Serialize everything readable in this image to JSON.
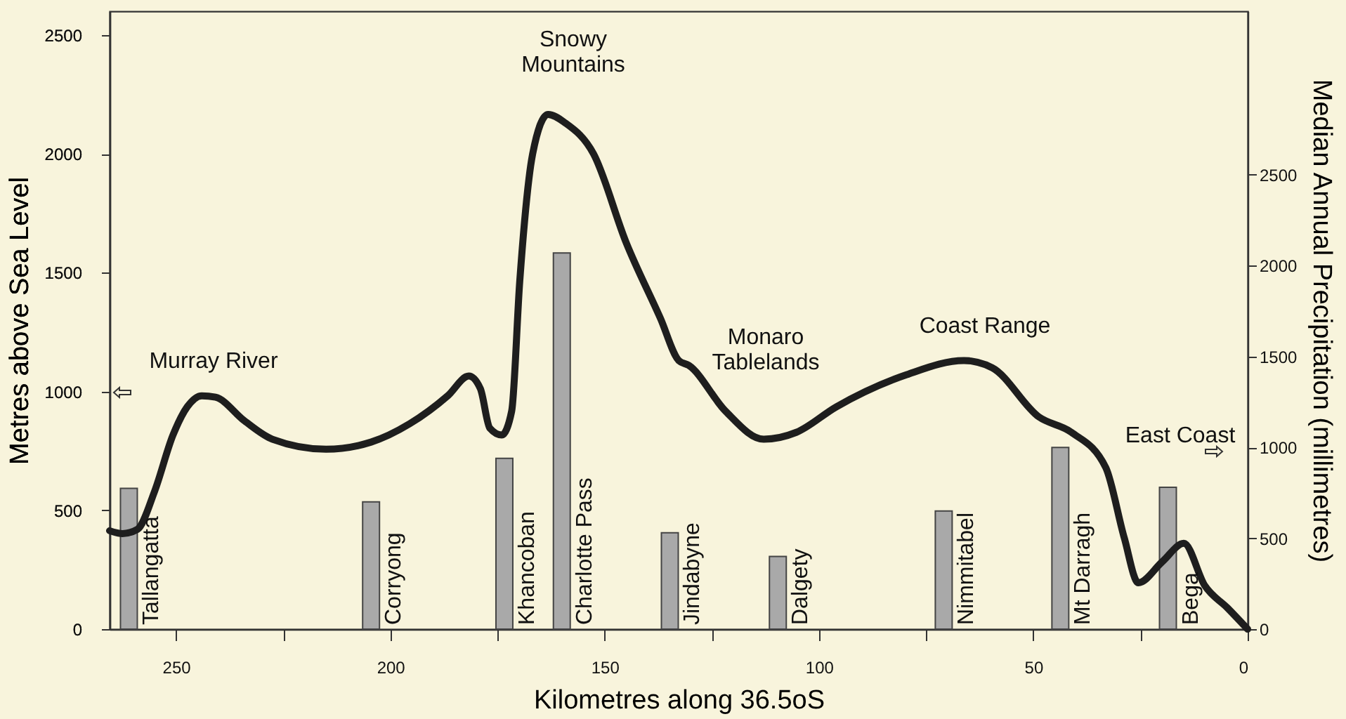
{
  "chart_data": {
    "type": "line",
    "xlabel": "Kilometres along 36.5oS",
    "ylabel": "Metres above Sea Level",
    "y2label": "Median Annual Precipitation (millimetres)",
    "xlim": [
      265.5,
      0
    ],
    "xticks": [
      250,
      {
        "value": 225,
        "label": null
      },
      200,
      {
        "value": 175,
        "label": null
      },
      150,
      {
        "value": 125,
        "label": null
      },
      100,
      {
        "value": 75,
        "label": null
      },
      50,
      {
        "value": 25,
        "label": null
      },
      0
    ],
    "ylim": [
      0,
      2600
    ],
    "yticks": [
      0,
      500,
      1000,
      1500,
      2000,
      2500
    ],
    "y2lim": [
      0,
      3400
    ],
    "y2ticks": [
      0,
      500,
      1000,
      1500,
      2000,
      2500
    ],
    "series": [
      {
        "type": "bar",
        "axis": "y2",
        "color": "#a9a9a9",
        "x": [
          261,
          204.5,
          173.4,
          160,
          134.8,
          109.6,
          70.9,
          43.7,
          18.6
        ],
        "values": [
          775,
          700,
          940,
          2070,
          530,
          400,
          650,
          1000,
          780
        ]
      },
      {
        "color": "#1e1e1e",
        "x": [
          265.5,
          262.5,
          259,
          255,
          250.7,
          247.4,
          244,
          240.8,
          234,
          227.5,
          215,
          204.5,
          195.5,
          186.6,
          181.7,
          179,
          176.8,
          174,
          171.7,
          169.8,
          166.8,
          163.2,
          159.2,
          152.6,
          145,
          137,
          132.7,
          130.4,
          121.8,
          112.9,
          105.3,
          96,
          79.5,
          66.2,
          59.6,
          48.7,
          41.1,
          33.1,
          28.8,
          25.5,
          19.9,
          14.9,
          10,
          4.7,
          0
        ],
        "values": [
          414,
          402,
          420,
          580,
          817,
          935,
          982,
          976,
          876,
          799,
          757,
          787,
          864,
          982,
          1065,
          1012,
          846,
          817,
          917,
          1467,
          2000,
          2166,
          2130,
          2000,
          1627,
          1308,
          1130,
          1110,
          917,
          799,
          828,
          935,
          1071,
          1130,
          1100,
          893,
          828,
          680,
          385,
          195,
          284,
          361,
          183,
          89,
          0
        ]
      }
    ],
    "annotations": [
      {
        "text": "Tallangatta",
        "x": 261,
        "y": 0
      },
      {
        "text": "Corryong",
        "x": 204.5,
        "y": 0
      },
      {
        "text": "Khancoban",
        "x": 173.4,
        "y": 0
      },
      {
        "text": "Charlotte Pass",
        "x": 160,
        "y": 0
      },
      {
        "text": "Jindabyne",
        "x": 134.8,
        "y": 0
      },
      {
        "text": "Dalgety",
        "x": 109.6,
        "y": 0
      },
      {
        "text": "Nimmitabel",
        "x": 70.9,
        "y": 0
      },
      {
        "text": "Mt Darragh",
        "x": 43.7,
        "y": 0
      },
      {
        "text": "Bega",
        "x": 18.6,
        "y": 0
      },
      "Murray River",
      "Snowy\nMountains",
      "Monaro\nTablelands",
      "Coast Range",
      "East Coast"
    ]
  }
}
